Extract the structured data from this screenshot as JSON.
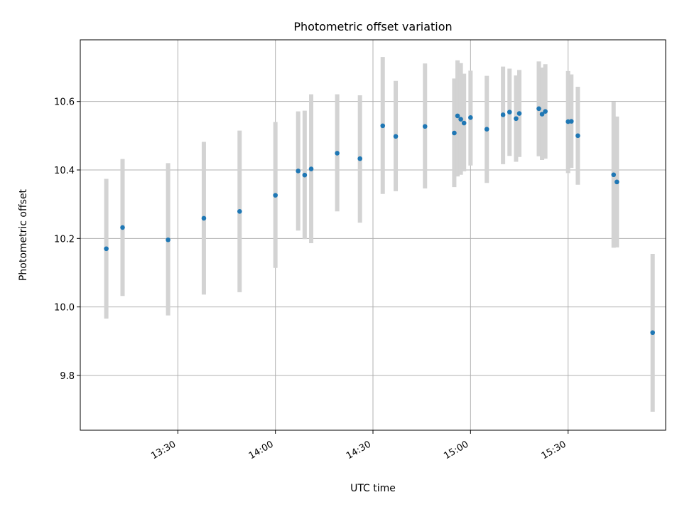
{
  "chart_data": {
    "type": "scatter",
    "title": "Photometric offset variation",
    "xlabel": "UTC time",
    "ylabel": "Photometric offset",
    "xlim": [
      "13:00",
      "16:00"
    ],
    "ylim": [
      9.64,
      10.78
    ],
    "x_ticks": [
      "13:30",
      "14:00",
      "14:30",
      "15:00",
      "15:30"
    ],
    "y_ticks": [
      9.8,
      10.0,
      10.2,
      10.4,
      10.6
    ],
    "grid": true,
    "colors": {
      "point": "#1f77b4",
      "errorbar": "#d3d3d3",
      "grid": "#b0b0b0"
    },
    "points": [
      {
        "time": "13:08",
        "y": 10.17,
        "ylow": 9.966,
        "yhigh": 10.374
      },
      {
        "time": "13:13",
        "y": 10.232,
        "ylow": 10.032,
        "yhigh": 10.432
      },
      {
        "time": "13:27",
        "y": 10.196,
        "ylow": 9.975,
        "yhigh": 10.42
      },
      {
        "time": "13:38",
        "y": 10.259,
        "ylow": 10.036,
        "yhigh": 10.482
      },
      {
        "time": "13:49",
        "y": 10.279,
        "ylow": 10.043,
        "yhigh": 10.515
      },
      {
        "time": "14:00",
        "y": 10.326,
        "ylow": 10.114,
        "yhigh": 10.54
      },
      {
        "time": "14:07",
        "y": 10.397,
        "ylow": 10.223,
        "yhigh": 10.571
      },
      {
        "time": "14:09",
        "y": 10.385,
        "ylow": 10.198,
        "yhigh": 10.573
      },
      {
        "time": "14:11",
        "y": 10.403,
        "ylow": 10.186,
        "yhigh": 10.621
      },
      {
        "time": "14:19",
        "y": 10.449,
        "ylow": 10.279,
        "yhigh": 10.621
      },
      {
        "time": "14:26",
        "y": 10.433,
        "ylow": 10.246,
        "yhigh": 10.618
      },
      {
        "time": "14:33",
        "y": 10.529,
        "ylow": 10.33,
        "yhigh": 10.73
      },
      {
        "time": "14:37",
        "y": 10.498,
        "ylow": 10.338,
        "yhigh": 10.66
      },
      {
        "time": "14:46",
        "y": 10.527,
        "ylow": 10.346,
        "yhigh": 10.711
      },
      {
        "time": "14:55",
        "y": 10.508,
        "ylow": 10.35,
        "yhigh": 10.667
      },
      {
        "time": "14:56",
        "y": 10.558,
        "ylow": 10.381,
        "yhigh": 10.72
      },
      {
        "time": "14:57",
        "y": 10.548,
        "ylow": 10.386,
        "yhigh": 10.712
      },
      {
        "time": "14:58",
        "y": 10.537,
        "ylow": 10.396,
        "yhigh": 10.681
      },
      {
        "time": "15:00",
        "y": 10.553,
        "ylow": 10.413,
        "yhigh": 10.69
      },
      {
        "time": "15:05",
        "y": 10.519,
        "ylow": 10.362,
        "yhigh": 10.675
      },
      {
        "time": "15:10",
        "y": 10.561,
        "ylow": 10.417,
        "yhigh": 10.702
      },
      {
        "time": "15:12",
        "y": 10.569,
        "ylow": 10.441,
        "yhigh": 10.696
      },
      {
        "time": "15:14",
        "y": 10.55,
        "ylow": 10.424,
        "yhigh": 10.676
      },
      {
        "time": "15:15",
        "y": 10.565,
        "ylow": 10.438,
        "yhigh": 10.692
      },
      {
        "time": "15:21",
        "y": 10.579,
        "ylow": 10.44,
        "yhigh": 10.717
      },
      {
        "time": "15:22",
        "y": 10.563,
        "ylow": 10.429,
        "yhigh": 10.699
      },
      {
        "time": "15:23",
        "y": 10.571,
        "ylow": 10.433,
        "yhigh": 10.709
      },
      {
        "time": "15:30",
        "y": 10.541,
        "ylow": 10.391,
        "yhigh": 10.689
      },
      {
        "time": "15:31",
        "y": 10.542,
        "ylow": 10.406,
        "yhigh": 10.679
      },
      {
        "time": "15:33",
        "y": 10.5,
        "ylow": 10.357,
        "yhigh": 10.643
      },
      {
        "time": "15:44",
        "y": 10.386,
        "ylow": 10.173,
        "yhigh": 10.599
      },
      {
        "time": "15:45",
        "y": 10.365,
        "ylow": 10.174,
        "yhigh": 10.556
      },
      {
        "time": "15:56",
        "y": 9.925,
        "ylow": 9.694,
        "yhigh": 10.155
      }
    ]
  }
}
